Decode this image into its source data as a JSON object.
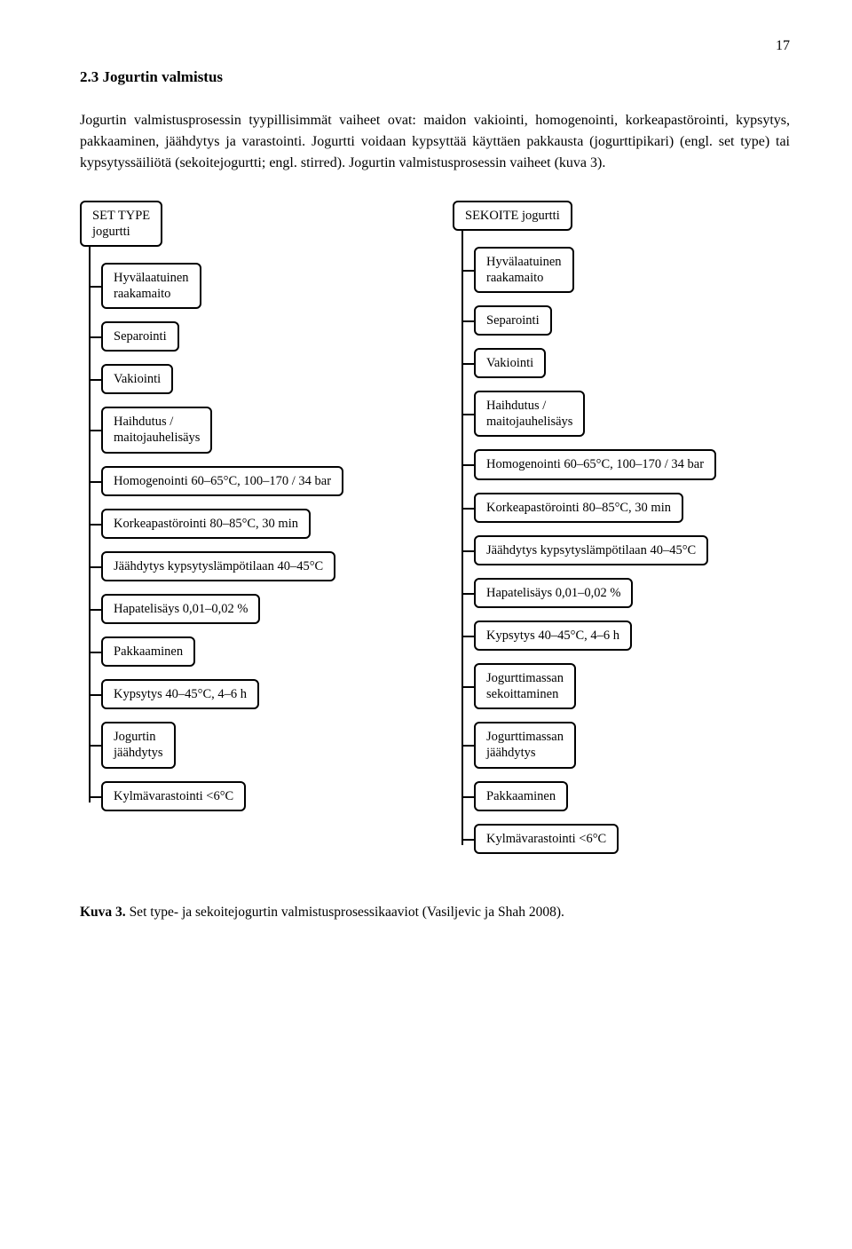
{
  "pageNumber": "17",
  "sectionHeading": "2.3 Jogurtin valmistus",
  "body": "Jogurtin valmistusprosessin tyypillisimmät vaiheet ovat: maidon vakiointi, homogenointi, korkeapastörointi, kypsytys, pakkaaminen, jäähdytys ja varastointi. Jogurtti voidaan kypsyttää käyttäen pakkausta (jogurttipikari) (engl. set type) tai kypsytyssäiliötä (sekoitejogurtti; engl. stirred). Jogurtin valmistusprosessin vaiheet (kuva 3).",
  "left": {
    "root": "SET TYPE\njogurtti",
    "steps": [
      "Hyvälaatuinen\nraakamaito",
      "Separointi",
      "Vakiointi",
      "Haihdutus /\nmaitojauhelisäys",
      "Homogenointi 60–65°C, 100–170 / 34 bar",
      "Korkeapastörointi 80–85°C, 30 min",
      "Jäähdytys kypsytyslämpötilaan 40–45°C",
      "Hapatelisäys 0,01–0,02 %",
      "Pakkaaminen",
      "Kypsytys 40–45°C, 4–6 h",
      "Jogurtin\njäähdytys",
      "Kylmävarastointi <6°C"
    ]
  },
  "right": {
    "root": "SEKOITE jogurtti",
    "steps": [
      "Hyvälaatuinen\nraakamaito",
      "Separointi",
      "Vakiointi",
      "Haihdutus /\nmaitojauhelisäys",
      "Homogenointi 60–65°C, 100–170 / 34 bar",
      "Korkeapastörointi 80–85°C, 30 min",
      "Jäähdytys kypsytyslämpötilaan 40–45°C",
      "Hapatelisäys 0,01–0,02 %",
      "Kypsytys 40–45°C, 4–6 h",
      "Jogurttimassan\nsekoittaminen",
      "Jogurttimassan\njäähdytys",
      "Pakkaaminen",
      "Kylmävarastointi <6°C"
    ]
  },
  "captionLabel": "Kuva 3.",
  "captionText": "Set type- ja sekoitejogurtin valmistusprosessikaaviot (Vasiljevic ja Shah 2008)."
}
